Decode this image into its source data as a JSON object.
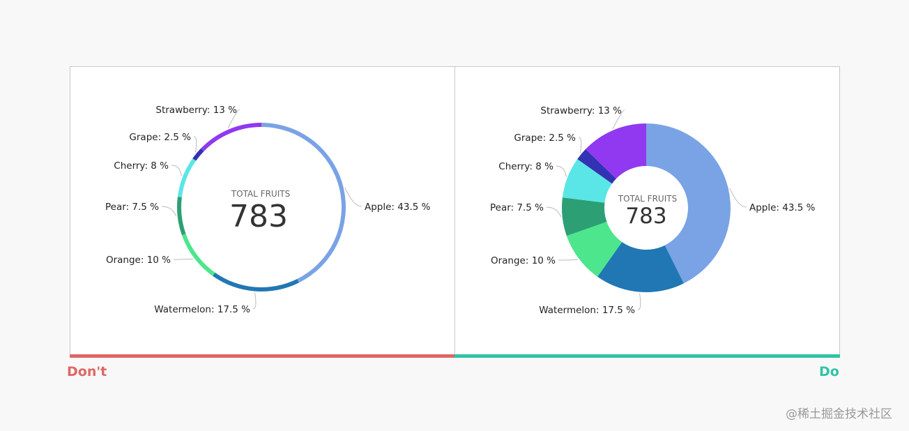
{
  "chart_data": [
    {
      "type": "pie",
      "variant": "thin-ring",
      "verdict": "Don't",
      "center_title": "TOTAL FRUITS",
      "center_value": "783",
      "slices": [
        {
          "name": "Apple",
          "value": 43.5,
          "label": "Apple: 43.5 %",
          "color": "#7aa3e5"
        },
        {
          "name": "Watermelon",
          "value": 17.5,
          "label": "Watermelon: 17.5 %",
          "color": "#2077b4"
        },
        {
          "name": "Orange",
          "value": 10,
          "label": "Orange: 10 %",
          "color": "#4de68c"
        },
        {
          "name": "Pear",
          "value": 7.5,
          "label": "Pear: 7.5 %",
          "color": "#2ca074"
        },
        {
          "name": "Cherry",
          "value": 8,
          "label": "Cherry: 8 %",
          "color": "#5ae6e6"
        },
        {
          "name": "Grape",
          "value": 2.5,
          "label": "Grape: 2.5 %",
          "color": "#3232b4"
        },
        {
          "name": "Strawberry",
          "value": 13,
          "label": "Strawberry: 13 %",
          "color": "#9039f0"
        }
      ]
    },
    {
      "type": "pie",
      "variant": "donut",
      "verdict": "Do",
      "center_title": "TOTAL FRUITS",
      "center_value": "783",
      "slices": [
        {
          "name": "Apple",
          "value": 43.5,
          "label": "Apple: 43.5 %",
          "color": "#7aa3e5"
        },
        {
          "name": "Watermelon",
          "value": 17.5,
          "label": "Watermelon: 17.5 %",
          "color": "#2077b4"
        },
        {
          "name": "Orange",
          "value": 10,
          "label": "Orange: 10 %",
          "color": "#4de68c"
        },
        {
          "name": "Pear",
          "value": 7.5,
          "label": "Pear: 7.5 %",
          "color": "#2ca074"
        },
        {
          "name": "Cherry",
          "value": 8,
          "label": "Cherry: 8 %",
          "color": "#5ae6e6"
        },
        {
          "name": "Grape",
          "value": 2.5,
          "label": "Grape: 2.5 %",
          "color": "#3232b4"
        },
        {
          "name": "Strawberry",
          "value": 13,
          "label": "Strawberry: 13 %",
          "color": "#9039f0"
        }
      ]
    }
  ],
  "verdicts": {
    "dont": "Don't",
    "do": "Do",
    "dont_color": "#e06666",
    "do_color": "#2ec4a6"
  },
  "watermark": "@稀土掘金技术社区"
}
